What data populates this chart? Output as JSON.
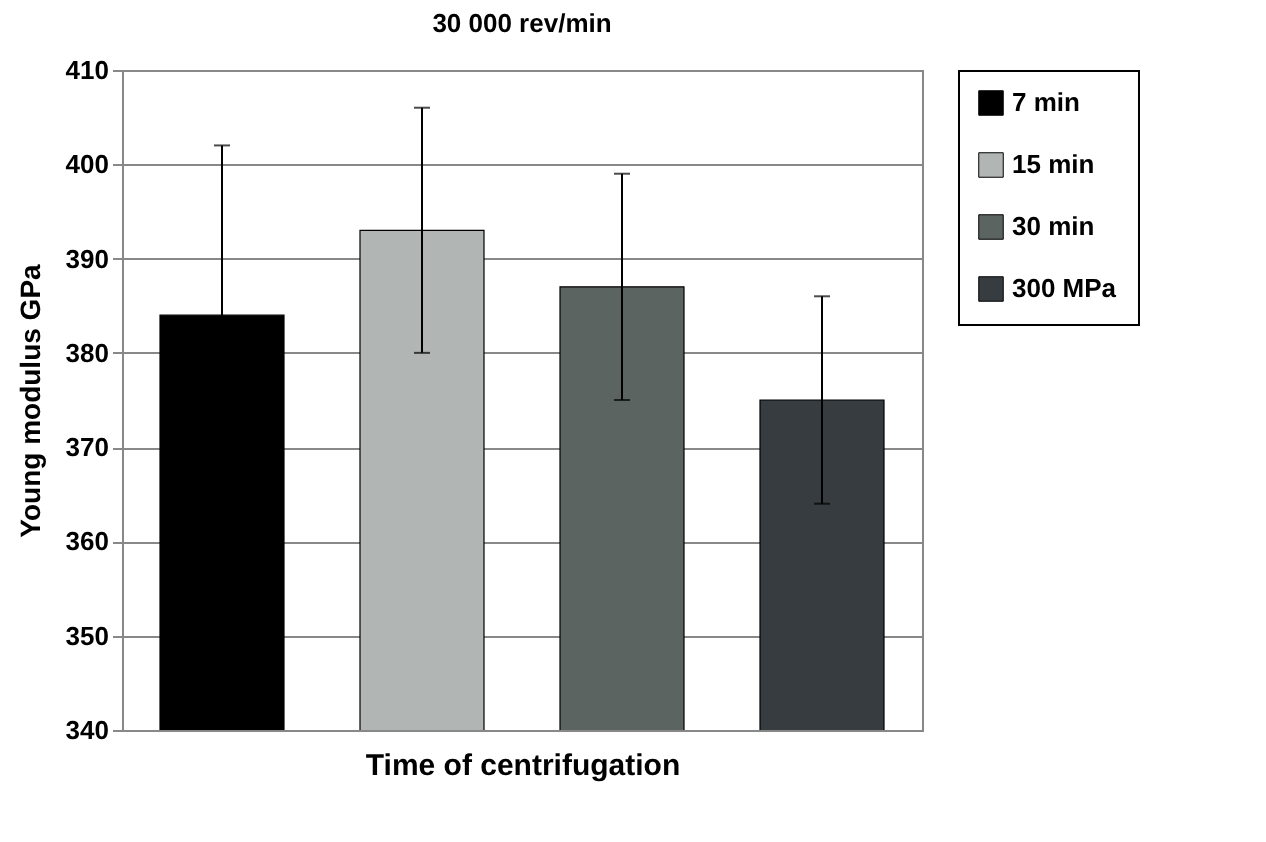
{
  "chart_data": {
    "type": "bar",
    "title": "30 000 rev/min",
    "xlabel": "Time of centrifugation",
    "ylabel": "Young modulus GPa",
    "categories": [
      null,
      null,
      null,
      null
    ],
    "series": [
      {
        "name": "7 min",
        "color": "#000000",
        "values": [
          384,
          null,
          null,
          null
        ],
        "errors": [
          18,
          null,
          null,
          null
        ]
      },
      {
        "name": "15 min",
        "color": "#b1b6b4",
        "values": [
          null,
          393,
          null,
          null
        ],
        "errors": [
          null,
          13,
          null,
          null
        ]
      },
      {
        "name": "30 min",
        "color": "#5b6461",
        "values": [
          null,
          null,
          387,
          null
        ],
        "errors": [
          null,
          null,
          12,
          null
        ]
      },
      {
        "name": "300 MPa",
        "color": "#363c40",
        "values": [
          null,
          null,
          null,
          375
        ],
        "errors": [
          null,
          null,
          null,
          11
        ]
      }
    ],
    "ylim": [
      340,
      410
    ],
    "yticks": [
      340,
      350,
      360,
      370,
      380,
      390,
      400,
      410
    ],
    "grid": "y",
    "legend": "right"
  }
}
